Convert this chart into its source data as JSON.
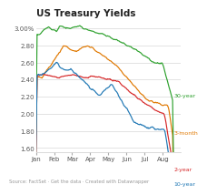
{
  "title": "US Treasury Yields",
  "ytick_vals": [
    1.6,
    1.8,
    2.0,
    2.2,
    2.4,
    2.6,
    2.8,
    3.0
  ],
  "ylabel_ticks": [
    "1.60",
    "1.80",
    "2.00",
    "2.20",
    "2.40",
    "2.60",
    "2.80",
    "3.00%"
  ],
  "xlabels": [
    "Jan",
    "Feb",
    "Mar",
    "Apr",
    "May",
    "Jun",
    "Jul",
    "Aug"
  ],
  "legend": [
    "30-year",
    "3-month",
    "10-year",
    "2-year"
  ],
  "colors": {
    "30year": "#2ca02c",
    "3month": "#e07800",
    "10year": "#1f77b4",
    "2year": "#d62728"
  },
  "source_text": "Source: FactSet · Get the data · Created with Datawrapper",
  "title_fontsize": 7.5,
  "tick_fontsize": 5.0,
  "footnote_fontsize": 3.8,
  "label_fontsize": 4.5,
  "ylim": [
    1.55,
    3.1
  ],
  "xlim": [
    0,
    8.0
  ]
}
